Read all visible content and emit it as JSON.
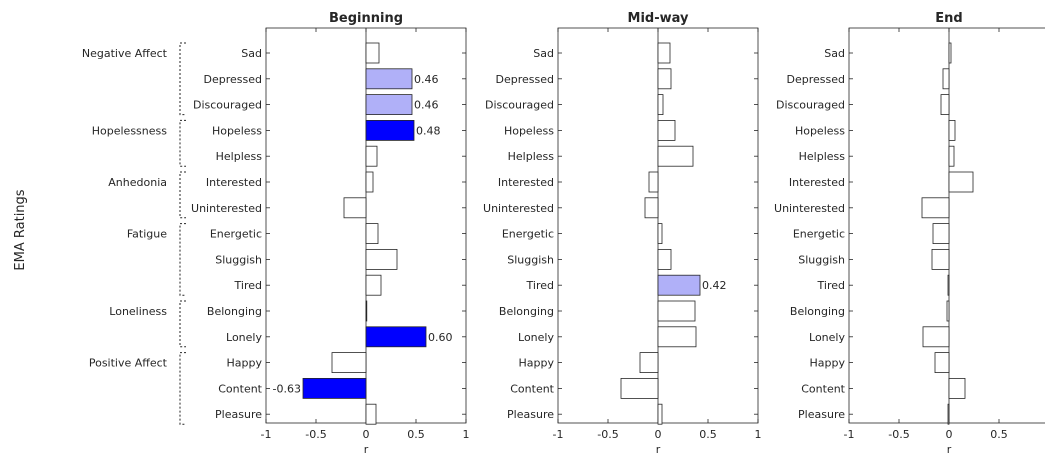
{
  "ylabel": "EMA Ratings",
  "groups": [
    {
      "label": "Negative Affect",
      "items": [
        "Sad",
        "Depressed",
        "Discouraged"
      ]
    },
    {
      "label": "Hopelessness",
      "items": [
        "Hopeless",
        "Helpless"
      ]
    },
    {
      "label": "Anhedonia",
      "items": [
        "Interested",
        "Uninterested"
      ]
    },
    {
      "label": "Fatigue",
      "items": [
        "Energetic",
        "Sluggish",
        "Tired"
      ]
    },
    {
      "label": "Loneliness",
      "items": [
        "Belonging",
        "Lonely"
      ]
    },
    {
      "label": "Positive Affect",
      "items": [
        "Happy",
        "Content",
        "Pleasure"
      ]
    }
  ],
  "chart_data": [
    {
      "type": "bar",
      "orientation": "horizontal",
      "title": "Beginning",
      "xlabel": "r",
      "xlim": [
        -1,
        1
      ],
      "xticks": [
        "-1",
        "-0.5",
        "0",
        "0.5",
        "1"
      ],
      "categories": [
        "Sad",
        "Depressed",
        "Discouraged",
        "Hopeless",
        "Helpless",
        "Interested",
        "Uninterested",
        "Energetic",
        "Sluggish",
        "Tired",
        "Belonging",
        "Lonely",
        "Happy",
        "Content",
        "Pleasure"
      ],
      "values": [
        0.13,
        0.46,
        0.46,
        0.48,
        0.11,
        0.07,
        -0.22,
        0.12,
        0.31,
        0.15,
        0.0,
        0.6,
        -0.34,
        -0.63,
        0.1
      ],
      "data_labels": [
        "",
        "0.46",
        "0.46",
        "0.48",
        "",
        "",
        "",
        "",
        "",
        "",
        "",
        "0.60",
        "",
        "-0.63",
        ""
      ],
      "highlight": [
        "none",
        "light",
        "light",
        "strong",
        "none",
        "none",
        "none",
        "none",
        "none",
        "none",
        "none",
        "strong",
        "none",
        "strong",
        "none"
      ]
    },
    {
      "type": "bar",
      "orientation": "horizontal",
      "title": "Mid-way",
      "xlabel": "r",
      "xlim": [
        -1,
        1
      ],
      "xticks": [
        "-1",
        "-0.5",
        "0",
        "0.5",
        "1"
      ],
      "categories": [
        "Sad",
        "Depressed",
        "Discouraged",
        "Hopeless",
        "Helpless",
        "Interested",
        "Uninterested",
        "Energetic",
        "Sluggish",
        "Tired",
        "Belonging",
        "Lonely",
        "Happy",
        "Content",
        "Pleasure"
      ],
      "values": [
        0.12,
        0.13,
        0.05,
        0.17,
        0.35,
        -0.09,
        -0.13,
        0.04,
        0.13,
        0.42,
        0.37,
        0.38,
        -0.18,
        -0.37,
        0.04
      ],
      "data_labels": [
        "",
        "",
        "",
        "",
        "",
        "",
        "",
        "",
        "",
        "0.42",
        "",
        "",
        "",
        "",
        ""
      ],
      "highlight": [
        "none",
        "none",
        "none",
        "none",
        "none",
        "none",
        "none",
        "none",
        "none",
        "light",
        "none",
        "none",
        "none",
        "none",
        "none"
      ]
    },
    {
      "type": "bar",
      "orientation": "horizontal",
      "title": "End",
      "xlabel": "r",
      "xlim": [
        -1,
        1
      ],
      "xticks": [
        "-1",
        "-0.5",
        "0",
        "0.5"
      ],
      "categories": [
        "Sad",
        "Depressed",
        "Discouraged",
        "Hopeless",
        "Helpless",
        "Interested",
        "Uninterested",
        "Energetic",
        "Sluggish",
        "Tired",
        "Belonging",
        "Lonely",
        "Happy",
        "Content",
        "Pleasure"
      ],
      "values": [
        0.02,
        -0.06,
        -0.08,
        0.06,
        0.05,
        0.24,
        -0.27,
        -0.16,
        -0.17,
        -0.01,
        -0.02,
        -0.26,
        -0.14,
        0.16,
        -0.01
      ],
      "data_labels": [
        "",
        "",
        "",
        "",
        "",
        "",
        "",
        "",
        "",
        "",
        "",
        "",
        "",
        "",
        ""
      ],
      "highlight": [
        "none",
        "none",
        "none",
        "none",
        "none",
        "none",
        "none",
        "none",
        "none",
        "none",
        "none",
        "none",
        "none",
        "none",
        "none"
      ]
    }
  ],
  "colors": {
    "strong": "#0000ff",
    "light": "#b0b0f8",
    "none": "#ffffff",
    "edge": "#262626",
    "text": "#262626"
  }
}
